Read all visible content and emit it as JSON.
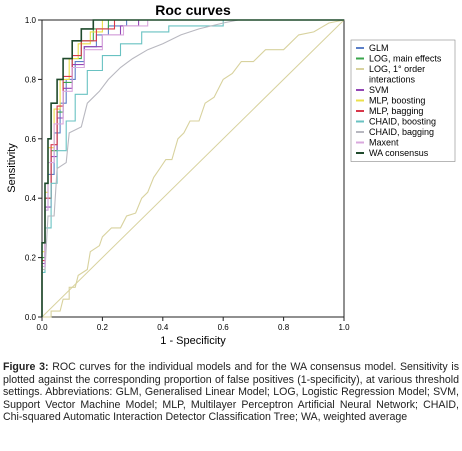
{
  "caption": {
    "label": "Figure 3:",
    "text": "ROC curves for the individual models and for the WA consensus model. Sensitivity is plotted against the corresponding proportion of false positives (1-specificity), at various threshold settings. Abbreviations: GLM, Generalised Linear Model; LOG, Logistic Regression Model; SVM, Support Vector Machine Model; MLP, Multilayer Perceptron Artificial Neural Network; CHAID, Chi-squared Automatic Interaction Detector Classification Tree; WA, weighted average"
  },
  "chart_data": {
    "type": "line",
    "title": "Roc curves",
    "xlabel": "1 - Specificity",
    "ylabel": "Sensitivity",
    "xlim": [
      0,
      1
    ],
    "ylim": [
      0,
      1
    ],
    "xticks": [
      "0.0",
      "0.2",
      "0.4",
      "0.6",
      "0.8",
      "1.0"
    ],
    "yticks": [
      "0.0",
      "0.2",
      "0.4",
      "0.6",
      "0.8",
      "1.0"
    ],
    "grid": false,
    "legend_position": "right",
    "reference_line": true,
    "series": [
      {
        "name": "GLM",
        "color": "#5b7fc7",
        "points": [
          [
            0,
            0
          ],
          [
            0,
            0.17
          ],
          [
            0.01,
            0.17
          ],
          [
            0.01,
            0.36
          ],
          [
            0.02,
            0.36
          ],
          [
            0.02,
            0.48
          ],
          [
            0.04,
            0.48
          ],
          [
            0.04,
            0.62
          ],
          [
            0.06,
            0.62
          ],
          [
            0.06,
            0.72
          ],
          [
            0.08,
            0.72
          ],
          [
            0.08,
            0.8
          ],
          [
            0.11,
            0.8
          ],
          [
            0.11,
            0.86
          ],
          [
            0.14,
            0.86
          ],
          [
            0.14,
            0.91
          ],
          [
            0.18,
            0.91
          ],
          [
            0.18,
            0.95
          ],
          [
            0.22,
            0.95
          ],
          [
            0.22,
            0.98
          ],
          [
            0.28,
            0.98
          ],
          [
            0.28,
            1
          ],
          [
            1,
            1
          ]
        ]
      },
      {
        "name": "LOG, main effects",
        "color": "#3aa64c",
        "points": [
          [
            0,
            0
          ],
          [
            0,
            0.2
          ],
          [
            0.01,
            0.2
          ],
          [
            0.01,
            0.4
          ],
          [
            0.03,
            0.4
          ],
          [
            0.03,
            0.56
          ],
          [
            0.05,
            0.56
          ],
          [
            0.05,
            0.69
          ],
          [
            0.07,
            0.69
          ],
          [
            0.07,
            0.79
          ],
          [
            0.1,
            0.79
          ],
          [
            0.1,
            0.87
          ],
          [
            0.13,
            0.87
          ],
          [
            0.13,
            0.93
          ],
          [
            0.17,
            0.93
          ],
          [
            0.17,
            0.97
          ],
          [
            0.22,
            0.97
          ],
          [
            0.22,
            1
          ],
          [
            1,
            1
          ]
        ]
      },
      {
        "name": "LOG, 1° order interactions",
        "color": "#d8d29e",
        "points": [
          [
            0,
            0
          ],
          [
            0.03,
            0
          ],
          [
            0.03,
            0.02
          ],
          [
            0.06,
            0.02
          ],
          [
            0.07,
            0.06
          ],
          [
            0.09,
            0.06
          ],
          [
            0.09,
            0.1
          ],
          [
            0.11,
            0.1
          ],
          [
            0.12,
            0.14
          ],
          [
            0.15,
            0.16
          ],
          [
            0.16,
            0.22
          ],
          [
            0.19,
            0.24
          ],
          [
            0.2,
            0.27
          ],
          [
            0.23,
            0.3
          ],
          [
            0.26,
            0.3
          ],
          [
            0.28,
            0.34
          ],
          [
            0.31,
            0.35
          ],
          [
            0.33,
            0.4
          ],
          [
            0.35,
            0.42
          ],
          [
            0.37,
            0.47
          ],
          [
            0.39,
            0.5
          ],
          [
            0.41,
            0.53
          ],
          [
            0.43,
            0.53
          ],
          [
            0.45,
            0.6
          ],
          [
            0.47,
            0.62
          ],
          [
            0.49,
            0.66
          ],
          [
            0.52,
            0.66
          ],
          [
            0.54,
            0.72
          ],
          [
            0.57,
            0.74
          ],
          [
            0.6,
            0.8
          ],
          [
            0.63,
            0.82
          ],
          [
            0.66,
            0.86
          ],
          [
            0.7,
            0.86
          ],
          [
            0.74,
            0.9
          ],
          [
            0.8,
            0.9
          ],
          [
            0.85,
            0.95
          ],
          [
            0.9,
            0.96
          ],
          [
            0.95,
            0.99
          ],
          [
            1,
            1
          ]
        ]
      },
      {
        "name": "SVM",
        "color": "#9346b5",
        "points": [
          [
            0,
            0
          ],
          [
            0,
            0.18
          ],
          [
            0.01,
            0.18
          ],
          [
            0.01,
            0.37
          ],
          [
            0.03,
            0.37
          ],
          [
            0.03,
            0.54
          ],
          [
            0.05,
            0.54
          ],
          [
            0.05,
            0.67
          ],
          [
            0.07,
            0.67
          ],
          [
            0.07,
            0.77
          ],
          [
            0.1,
            0.77
          ],
          [
            0.1,
            0.85
          ],
          [
            0.14,
            0.85
          ],
          [
            0.14,
            0.91
          ],
          [
            0.2,
            0.91
          ],
          [
            0.2,
            0.95
          ],
          [
            0.26,
            0.95
          ],
          [
            0.26,
            0.98
          ],
          [
            0.32,
            0.98
          ],
          [
            0.32,
            1
          ],
          [
            1,
            1
          ]
        ]
      },
      {
        "name": "MLP, boosting",
        "color": "#ece04a",
        "points": [
          [
            0,
            0
          ],
          [
            0,
            0.22
          ],
          [
            0.01,
            0.22
          ],
          [
            0.01,
            0.42
          ],
          [
            0.02,
            0.42
          ],
          [
            0.02,
            0.57
          ],
          [
            0.04,
            0.57
          ],
          [
            0.04,
            0.7
          ],
          [
            0.06,
            0.7
          ],
          [
            0.06,
            0.8
          ],
          [
            0.09,
            0.8
          ],
          [
            0.09,
            0.87
          ],
          [
            0.12,
            0.87
          ],
          [
            0.12,
            0.92
          ],
          [
            0.16,
            0.92
          ],
          [
            0.16,
            0.96
          ],
          [
            0.2,
            0.96
          ],
          [
            0.2,
            1
          ],
          [
            1,
            1
          ]
        ]
      },
      {
        "name": "MLP, bagging",
        "color": "#d8374a",
        "points": [
          [
            0,
            0
          ],
          [
            0,
            0.19
          ],
          [
            0.01,
            0.19
          ],
          [
            0.01,
            0.4
          ],
          [
            0.03,
            0.4
          ],
          [
            0.03,
            0.58
          ],
          [
            0.05,
            0.58
          ],
          [
            0.05,
            0.71
          ],
          [
            0.07,
            0.71
          ],
          [
            0.07,
            0.81
          ],
          [
            0.1,
            0.81
          ],
          [
            0.1,
            0.88
          ],
          [
            0.13,
            0.88
          ],
          [
            0.13,
            0.93
          ],
          [
            0.18,
            0.93
          ],
          [
            0.18,
            0.97
          ],
          [
            0.24,
            0.97
          ],
          [
            0.24,
            1
          ],
          [
            1,
            1
          ]
        ]
      },
      {
        "name": "CHAID, boosting",
        "color": "#69c2c2",
        "points": [
          [
            0,
            0
          ],
          [
            0,
            0.15
          ],
          [
            0.01,
            0.15
          ],
          [
            0.01,
            0.3
          ],
          [
            0.03,
            0.3
          ],
          [
            0.03,
            0.45
          ],
          [
            0.05,
            0.45
          ],
          [
            0.05,
            0.56
          ],
          [
            0.08,
            0.56
          ],
          [
            0.08,
            0.66
          ],
          [
            0.11,
            0.66
          ],
          [
            0.11,
            0.75
          ],
          [
            0.15,
            0.75
          ],
          [
            0.15,
            0.83
          ],
          [
            0.2,
            0.83
          ],
          [
            0.2,
            0.88
          ],
          [
            0.26,
            0.88
          ],
          [
            0.26,
            0.92
          ],
          [
            0.33,
            0.92
          ],
          [
            0.33,
            0.96
          ],
          [
            0.42,
            0.96
          ],
          [
            0.42,
            0.98
          ],
          [
            0.6,
            0.98
          ],
          [
            0.6,
            1
          ],
          [
            1,
            1
          ]
        ]
      },
      {
        "name": "CHAID, bagging",
        "color": "#b8b8c0",
        "points": [
          [
            0,
            0
          ],
          [
            0,
            0.16
          ],
          [
            0.01,
            0.16
          ],
          [
            0.02,
            0.34
          ],
          [
            0.04,
            0.34
          ],
          [
            0.05,
            0.5
          ],
          [
            0.08,
            0.52
          ],
          [
            0.09,
            0.62
          ],
          [
            0.13,
            0.64
          ],
          [
            0.15,
            0.72
          ],
          [
            0.19,
            0.76
          ],
          [
            0.22,
            0.8
          ],
          [
            0.26,
            0.84
          ],
          [
            0.3,
            0.87
          ],
          [
            0.35,
            0.9
          ],
          [
            0.4,
            0.92
          ],
          [
            0.46,
            0.95
          ],
          [
            0.52,
            0.97
          ],
          [
            0.6,
            0.99
          ],
          [
            0.65,
            1
          ],
          [
            1,
            1
          ]
        ]
      },
      {
        "name": "Maxent",
        "color": "#d9a8dd",
        "points": [
          [
            0,
            0
          ],
          [
            0,
            0.17
          ],
          [
            0.01,
            0.17
          ],
          [
            0.01,
            0.36
          ],
          [
            0.02,
            0.36
          ],
          [
            0.02,
            0.52
          ],
          [
            0.04,
            0.52
          ],
          [
            0.04,
            0.65
          ],
          [
            0.07,
            0.65
          ],
          [
            0.07,
            0.76
          ],
          [
            0.1,
            0.76
          ],
          [
            0.1,
            0.84
          ],
          [
            0.14,
            0.84
          ],
          [
            0.14,
            0.9
          ],
          [
            0.2,
            0.9
          ],
          [
            0.2,
            0.95
          ],
          [
            0.27,
            0.95
          ],
          [
            0.27,
            0.98
          ],
          [
            0.35,
            0.98
          ],
          [
            0.35,
            1
          ],
          [
            1,
            1
          ]
        ]
      },
      {
        "name": "WA consensus",
        "color": "#1f4a2c",
        "points": [
          [
            0,
            0
          ],
          [
            0,
            0.25
          ],
          [
            0.01,
            0.25
          ],
          [
            0.01,
            0.45
          ],
          [
            0.02,
            0.45
          ],
          [
            0.02,
            0.6
          ],
          [
            0.03,
            0.6
          ],
          [
            0.03,
            0.72
          ],
          [
            0.05,
            0.72
          ],
          [
            0.05,
            0.8
          ],
          [
            0.07,
            0.8
          ],
          [
            0.07,
            0.87
          ],
          [
            0.1,
            0.87
          ],
          [
            0.1,
            0.93
          ],
          [
            0.13,
            0.93
          ],
          [
            0.13,
            0.97
          ],
          [
            0.17,
            0.97
          ],
          [
            0.17,
            1
          ],
          [
            1,
            1
          ]
        ]
      }
    ]
  }
}
